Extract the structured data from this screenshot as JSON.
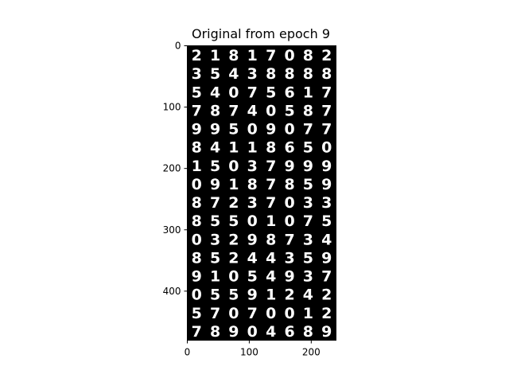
{
  "figure": {
    "title": "Original from epoch 9"
  },
  "image_plot": {
    "xlim": [
      0,
      240
    ],
    "ylim": [
      480,
      0
    ],
    "x_ticks": [
      0,
      100,
      200
    ],
    "y_ticks": [
      0,
      100,
      200,
      300,
      400
    ],
    "background_color": "#000000",
    "digit_color": "#ffffff",
    "grid_rows": 16,
    "grid_cols": 8,
    "digits": [
      [
        "2",
        "1",
        "8",
        "1",
        "7",
        "0",
        "8",
        "2"
      ],
      [
        "3",
        "5",
        "4",
        "3",
        "8",
        "8",
        "8",
        "8"
      ],
      [
        "5",
        "4",
        "0",
        "7",
        "5",
        "6",
        "1",
        "7"
      ],
      [
        "7",
        "8",
        "7",
        "4",
        "0",
        "5",
        "8",
        "7"
      ],
      [
        "9",
        "9",
        "5",
        "0",
        "9",
        "0",
        "7",
        "7"
      ],
      [
        "8",
        "4",
        "1",
        "1",
        "8",
        "6",
        "5",
        "0"
      ],
      [
        "1",
        "5",
        "0",
        "3",
        "7",
        "9",
        "9",
        "9"
      ],
      [
        "0",
        "9",
        "1",
        "8",
        "7",
        "8",
        "5",
        "9"
      ],
      [
        "8",
        "7",
        "2",
        "3",
        "7",
        "0",
        "3",
        "3"
      ],
      [
        "8",
        "5",
        "5",
        "0",
        "1",
        "0",
        "7",
        "5"
      ],
      [
        "0",
        "3",
        "2",
        "9",
        "8",
        "7",
        "3",
        "4"
      ],
      [
        "8",
        "5",
        "2",
        "4",
        "4",
        "3",
        "5",
        "9"
      ],
      [
        "9",
        "1",
        "0",
        "5",
        "4",
        "9",
        "3",
        "7"
      ],
      [
        "0",
        "5",
        "5",
        "9",
        "1",
        "2",
        "4",
        "2"
      ],
      [
        "5",
        "7",
        "0",
        "7",
        "0",
        "0",
        "1",
        "2"
      ],
      [
        "7",
        "8",
        "9",
        "0",
        "4",
        "6",
        "8",
        "9"
      ]
    ]
  }
}
